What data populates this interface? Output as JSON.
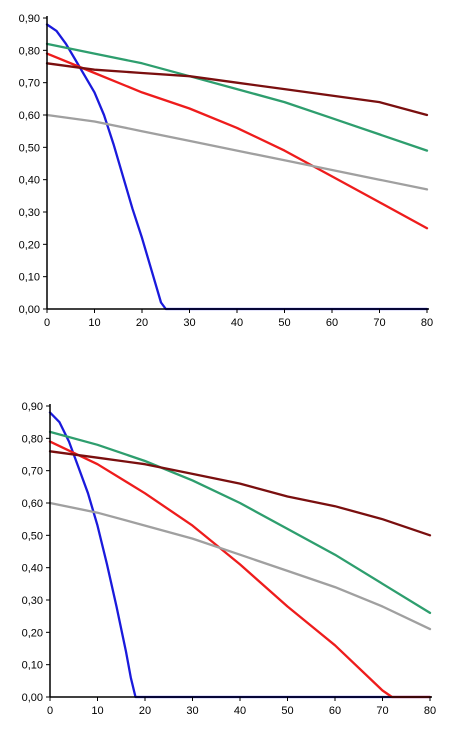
{
  "chart_data": [
    {
      "type": "line",
      "title": "",
      "xlabel": "",
      "ylabel": "",
      "xlim": [
        0,
        80
      ],
      "ylim": [
        0,
        0.9
      ],
      "x_ticks": [
        0,
        10,
        20,
        30,
        40,
        50,
        60,
        70,
        80
      ],
      "x_tick_labels": [
        "0",
        "10",
        "20",
        "30",
        "40",
        "50",
        "60",
        "70",
        "80"
      ],
      "y_ticks": [
        0,
        0.1,
        0.2,
        0.3,
        0.4,
        0.5,
        0.6,
        0.7,
        0.8,
        0.9
      ],
      "y_tick_labels": [
        "0,00",
        "0,10",
        "0,20",
        "0,30",
        "0,40",
        "0,50",
        "0,60",
        "0,70",
        "0,80",
        "0,90"
      ],
      "grid": false,
      "legend": "none",
      "series": [
        {
          "color": "#1a1adc",
          "points": [
            [
              0,
              0.88
            ],
            [
              2,
              0.86
            ],
            [
              4,
              0.82
            ],
            [
              6,
              0.77
            ],
            [
              8,
              0.72
            ],
            [
              10,
              0.67
            ],
            [
              12,
              0.6
            ],
            [
              14,
              0.51
            ],
            [
              16,
              0.41
            ],
            [
              18,
              0.31
            ],
            [
              20,
              0.22
            ],
            [
              22,
              0.12
            ],
            [
              24,
              0.02
            ],
            [
              25,
              0
            ],
            [
              80,
              0
            ]
          ]
        },
        {
          "color": "#ee1c1c",
          "points": [
            [
              0,
              0.79
            ],
            [
              10,
              0.73
            ],
            [
              20,
              0.67
            ],
            [
              30,
              0.62
            ],
            [
              40,
              0.56
            ],
            [
              50,
              0.49
            ],
            [
              60,
              0.41
            ],
            [
              70,
              0.33
            ],
            [
              80,
              0.25
            ]
          ]
        },
        {
          "color": "#2e9e6e",
          "points": [
            [
              0,
              0.82
            ],
            [
              10,
              0.79
            ],
            [
              20,
              0.76
            ],
            [
              30,
              0.72
            ],
            [
              40,
              0.68
            ],
            [
              50,
              0.64
            ],
            [
              60,
              0.59
            ],
            [
              70,
              0.54
            ],
            [
              80,
              0.49
            ]
          ]
        },
        {
          "color": "#7a0f0f",
          "points": [
            [
              0,
              0.76
            ],
            [
              10,
              0.74
            ],
            [
              20,
              0.73
            ],
            [
              30,
              0.72
            ],
            [
              40,
              0.7
            ],
            [
              50,
              0.68
            ],
            [
              60,
              0.66
            ],
            [
              70,
              0.64
            ],
            [
              80,
              0.6
            ]
          ]
        },
        {
          "color": "#a0a0a0",
          "points": [
            [
              0,
              0.6
            ],
            [
              10,
              0.58
            ],
            [
              20,
              0.55
            ],
            [
              30,
              0.52
            ],
            [
              40,
              0.49
            ],
            [
              50,
              0.46
            ],
            [
              60,
              0.43
            ],
            [
              70,
              0.4
            ],
            [
              80,
              0.37
            ]
          ]
        }
      ]
    },
    {
      "type": "line",
      "title": "",
      "xlabel": "",
      "ylabel": "",
      "xlim": [
        0,
        80
      ],
      "ylim": [
        0,
        0.9
      ],
      "x_ticks": [
        0,
        10,
        20,
        30,
        40,
        50,
        60,
        70,
        80
      ],
      "x_tick_labels": [
        "0",
        "10",
        "20",
        "30",
        "40",
        "50",
        "60",
        "70",
        "80"
      ],
      "y_ticks": [
        0,
        0.1,
        0.2,
        0.3,
        0.4,
        0.5,
        0.6,
        0.7,
        0.8,
        0.9
      ],
      "y_tick_labels": [
        "0,00",
        "0,10",
        "0,20",
        "0,30",
        "0,40",
        "0,50",
        "0,60",
        "0,70",
        "0,80",
        "0,90"
      ],
      "grid": false,
      "legend": "none",
      "series": [
        {
          "color": "#1a1adc",
          "points": [
            [
              0,
              0.88
            ],
            [
              2,
              0.85
            ],
            [
              4,
              0.79
            ],
            [
              6,
              0.71
            ],
            [
              8,
              0.63
            ],
            [
              10,
              0.53
            ],
            [
              12,
              0.41
            ],
            [
              14,
              0.28
            ],
            [
              16,
              0.14
            ],
            [
              17,
              0.06
            ],
            [
              18,
              0
            ],
            [
              80,
              0
            ]
          ]
        },
        {
          "color": "#ee1c1c",
          "points": [
            [
              0,
              0.79
            ],
            [
              10,
              0.72
            ],
            [
              20,
              0.63
            ],
            [
              30,
              0.53
            ],
            [
              40,
              0.41
            ],
            [
              50,
              0.28
            ],
            [
              60,
              0.16
            ],
            [
              70,
              0.02
            ],
            [
              72,
              0
            ],
            [
              80,
              0
            ]
          ]
        },
        {
          "color": "#2e9e6e",
          "points": [
            [
              0,
              0.82
            ],
            [
              10,
              0.78
            ],
            [
              20,
              0.73
            ],
            [
              30,
              0.67
            ],
            [
              40,
              0.6
            ],
            [
              50,
              0.52
            ],
            [
              60,
              0.44
            ],
            [
              70,
              0.35
            ],
            [
              80,
              0.26
            ]
          ]
        },
        {
          "color": "#7a0f0f",
          "points": [
            [
              0,
              0.76
            ],
            [
              10,
              0.74
            ],
            [
              20,
              0.72
            ],
            [
              30,
              0.69
            ],
            [
              40,
              0.66
            ],
            [
              50,
              0.62
            ],
            [
              60,
              0.59
            ],
            [
              70,
              0.55
            ],
            [
              80,
              0.5
            ]
          ]
        },
        {
          "color": "#a0a0a0",
          "points": [
            [
              0,
              0.6
            ],
            [
              10,
              0.57
            ],
            [
              20,
              0.53
            ],
            [
              30,
              0.49
            ],
            [
              40,
              0.44
            ],
            [
              50,
              0.39
            ],
            [
              60,
              0.34
            ],
            [
              70,
              0.28
            ],
            [
              80,
              0.21
            ]
          ]
        }
      ]
    }
  ]
}
